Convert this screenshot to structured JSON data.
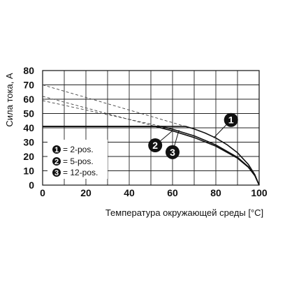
{
  "chart_data": {
    "type": "line",
    "xlabel": "Температура окружающей среды [°C]",
    "ylabel": "Сила тока, А",
    "xlim": [
      0,
      100
    ],
    "ylim": [
      0,
      80
    ],
    "x_ticks": [
      0,
      20,
      40,
      60,
      80,
      100
    ],
    "y_ticks": [
      0,
      10,
      20,
      30,
      40,
      50,
      60,
      70,
      80
    ],
    "x_tick_labels": [
      "0",
      "20",
      "40",
      "60",
      "80",
      "100"
    ],
    "y_tick_labels": [
      "0",
      "10",
      "20",
      "30",
      "40",
      "50",
      "60",
      "70",
      "80"
    ],
    "grid": true,
    "legend_position": "bottom-left",
    "series": [
      {
        "name": "1 = 2-pos.",
        "marker_label": "1",
        "style": "solid",
        "points": [
          [
            0,
            41
          ],
          [
            66,
            41
          ],
          [
            70,
            39.2
          ],
          [
            75,
            36.4
          ],
          [
            80,
            32.9
          ],
          [
            85,
            28.4
          ],
          [
            90,
            22.6
          ],
          [
            95,
            14.5
          ],
          [
            98,
            7.3
          ],
          [
            100,
            0
          ]
        ]
      },
      {
        "name": "2 = 5-pos.",
        "marker_label": "2",
        "style": "solid",
        "points": [
          [
            0,
            41
          ],
          [
            52,
            41
          ],
          [
            60,
            37.9
          ],
          [
            70,
            33.2
          ],
          [
            80,
            27.2
          ],
          [
            90,
            18.8
          ],
          [
            95,
            12.5
          ],
          [
            98,
            6.6
          ],
          [
            100,
            0
          ]
        ]
      },
      {
        "name": "3 = 12-pos.",
        "marker_label": "3",
        "style": "solid",
        "points": [
          [
            0,
            41
          ],
          [
            55,
            41
          ],
          [
            60,
            39
          ],
          [
            70,
            34.4
          ],
          [
            80,
            28.1
          ],
          [
            90,
            19.4
          ],
          [
            95,
            12.8
          ],
          [
            98,
            6.8
          ],
          [
            100,
            0
          ]
        ]
      }
    ],
    "derating_dashed": [
      {
        "points": [
          [
            0,
            70
          ],
          [
            66,
            41
          ]
        ]
      },
      {
        "points": [
          [
            0,
            62
          ],
          [
            52,
            41
          ]
        ]
      },
      {
        "points": [
          [
            0,
            59
          ],
          [
            55,
            41
          ]
        ]
      }
    ],
    "callouts": [
      {
        "text": "1",
        "x": 87,
        "y": 45.5
      },
      {
        "text": "2",
        "x": 52,
        "y": 27.8
      },
      {
        "text": "3",
        "x": 60,
        "y": 23
      }
    ]
  },
  "legend": {
    "items": [
      {
        "marker": "1",
        "text": "= 2-pos."
      },
      {
        "marker": "2",
        "text": "= 5-pos."
      },
      {
        "marker": "3",
        "text": "= 12-pos."
      }
    ]
  }
}
